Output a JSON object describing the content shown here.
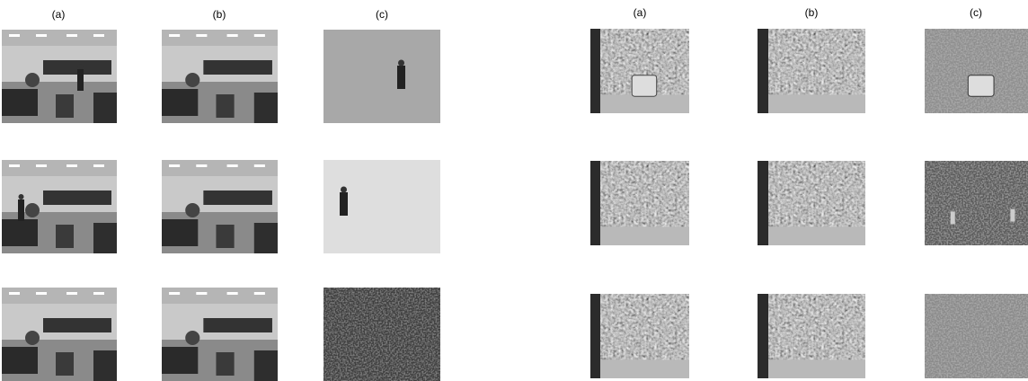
{
  "left_panel": {
    "column_labels": [
      "(a)",
      "(b)",
      "(c)"
    ]
  },
  "right_panel": {
    "column_labels": [
      "(a)",
      "(b)",
      "(c)"
    ]
  }
}
